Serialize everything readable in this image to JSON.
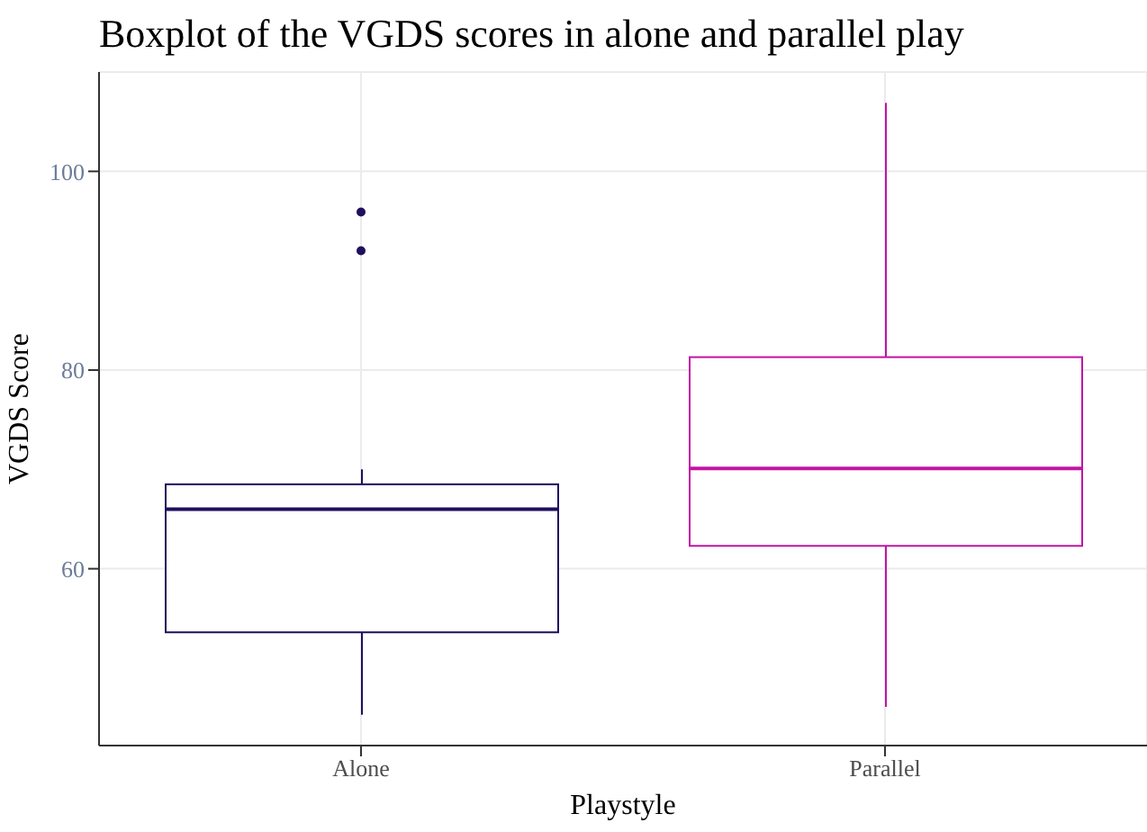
{
  "chart_data": {
    "type": "box",
    "title": "Boxplot of the VGDS scores in alone and parallel play",
    "xlabel": "Playstyle",
    "ylabel": "VGDS Score",
    "categories": [
      "Alone",
      "Parallel"
    ],
    "boxes": [
      {
        "low": 45.3,
        "q1": 53.6,
        "median": 66.0,
        "q3": 68.5,
        "high": 70.0,
        "outliers": [
          95.9,
          92.0
        ]
      },
      {
        "low": 46.1,
        "q1": 62.3,
        "median": 70.1,
        "q3": 81.3,
        "high": 106.9
      }
    ],
    "colors": [
      "#1f0f5c",
      "#c214a4"
    ],
    "ylim": [
      42.2,
      110
    ],
    "yticks": [
      60,
      80,
      100
    ],
    "grid": true,
    "legend": false
  }
}
